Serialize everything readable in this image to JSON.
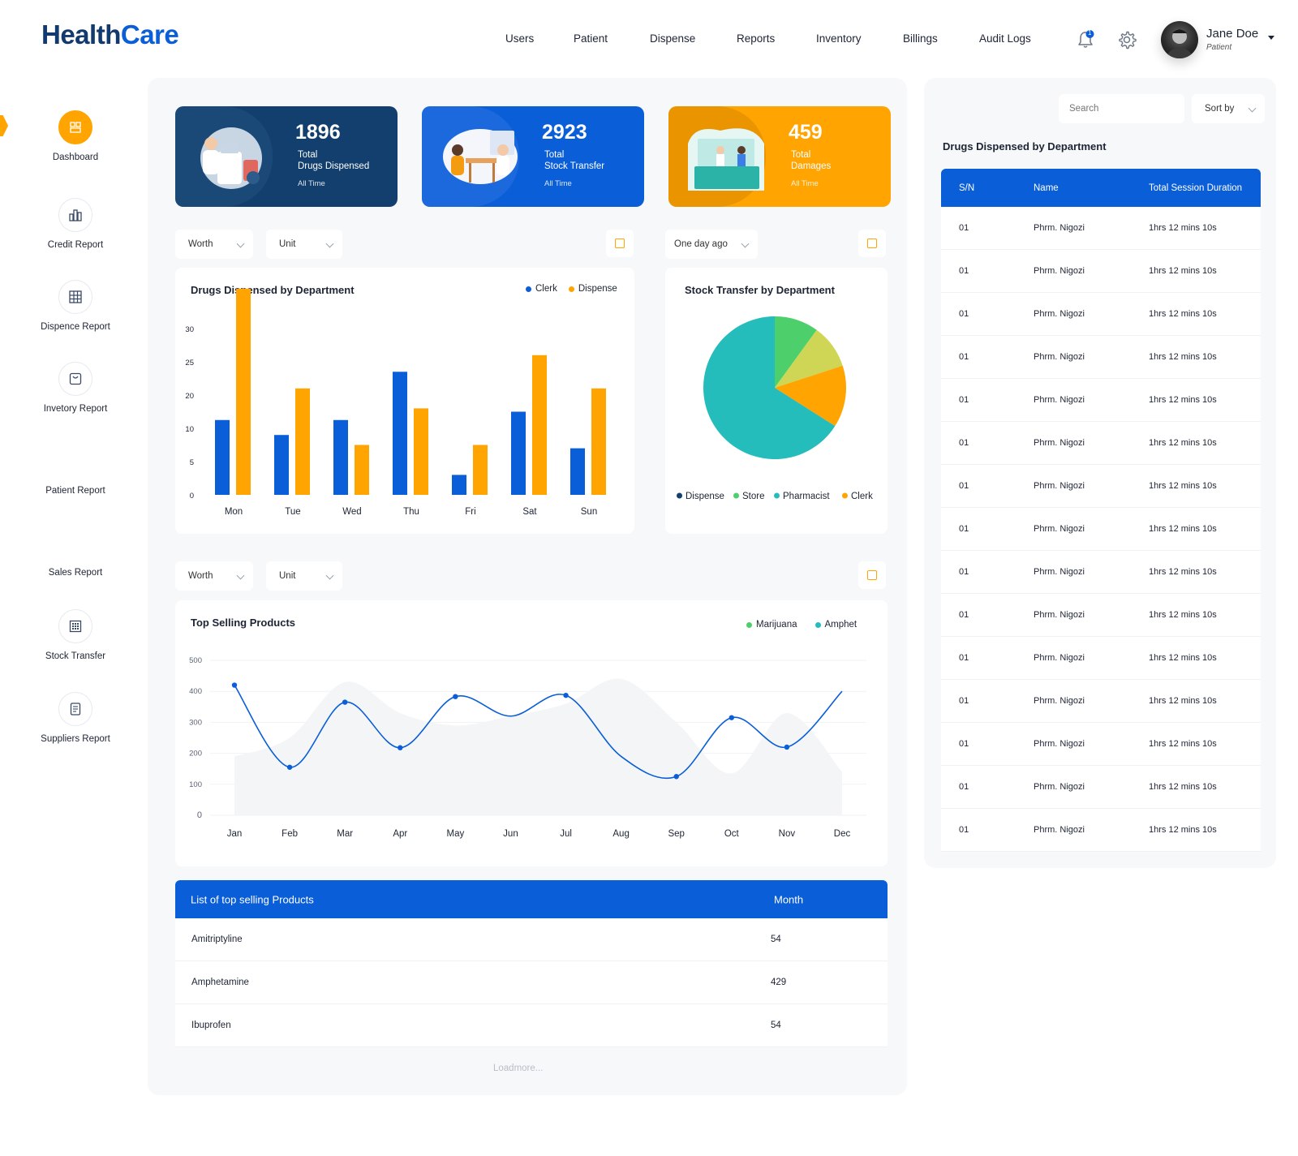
{
  "brand": {
    "part1": "Health",
    "part2": "Care"
  },
  "nav": [
    "Users",
    "Patient",
    "Dispense",
    "Reports",
    "Inventory",
    "Billings",
    "Audit Logs"
  ],
  "notifications": {
    "count": "1"
  },
  "user": {
    "name": "Jane Doe",
    "role": "Patient"
  },
  "sidebar": {
    "items": [
      {
        "label": "Dashboard",
        "icon": "dashboard-icon"
      },
      {
        "label": "Credit Report",
        "icon": "bar-chart-icon"
      },
      {
        "label": "Dispence Report",
        "icon": "grid-icon"
      },
      {
        "label": "Invetory Report",
        "icon": "bag-icon"
      },
      {
        "label": "Patient Report",
        "icon": ""
      },
      {
        "label": "Sales Report",
        "icon": ""
      },
      {
        "label": "Stock Transfer",
        "icon": "building-icon"
      },
      {
        "label": "Suppliers Report",
        "icon": "document-icon"
      }
    ]
  },
  "stats": [
    {
      "value": "1896",
      "line1": "Total",
      "line2": "Drugs Dispensed",
      "line3": "All Time",
      "color": "#123f6e"
    },
    {
      "value": "2923",
      "line1": "Total",
      "line2": "Stock Transfer",
      "line3": "All Time",
      "color": "#0a5ed7"
    },
    {
      "value": "459",
      "line1": "Total",
      "line2": "Damages",
      "line3": "All Time",
      "color": "#ffa400"
    }
  ],
  "filters": {
    "worth": "Worth",
    "unit": "Unit",
    "time": "One day ago",
    "worth2": "Worth",
    "unit2": "Unit"
  },
  "colors": {
    "blue": "#0a5ed7",
    "orange": "#ffa400",
    "teal": "#25bcbc",
    "green": "#4dd06b",
    "lime": "#cfd655",
    "navy": "#123f6e"
  },
  "chart_data": [
    {
      "type": "bar",
      "title": "Drugs Dispensed by Department",
      "categories": [
        "Mon",
        "Tue",
        "Wed",
        "Thu",
        "Fri",
        "Sat",
        "Sun"
      ],
      "yticks": [
        0,
        5,
        10,
        20,
        25,
        30
      ],
      "series": [
        {
          "name": "Clerk",
          "values": [
            12.5,
            9,
            12.5,
            23.5,
            3,
            15,
            7
          ]
        },
        {
          "name": "Dispense",
          "values": [
            36,
            21,
            7.5,
            16,
            7.5,
            26,
            21
          ]
        }
      ],
      "legend": "top-right"
    },
    {
      "type": "pie",
      "title": "Stock Transfer by Department",
      "slices": [
        {
          "name": "Store",
          "value": 10
        },
        {
          "name": "Pharmacist",
          "value": 10
        },
        {
          "name": "Clerk",
          "value": 14
        },
        {
          "name": "Dispense",
          "value": 66
        }
      ],
      "legend_order": [
        "Dispense",
        "Store",
        "Pharmacist",
        "Clerk"
      ],
      "legend": "bottom"
    },
    {
      "type": "line",
      "title": "Top Selling Products",
      "x": [
        "Jan",
        "Feb",
        "Mar",
        "Apr",
        "May",
        "Jun",
        "Jul",
        "Aug",
        "Sep",
        "Oct",
        "Nov",
        "Dec"
      ],
      "ylim": [
        0,
        500
      ],
      "yticks": [
        0,
        100,
        200,
        300,
        400,
        500
      ],
      "series": [
        {
          "name": "Amphet",
          "points": [
            [
              0,
              420
            ],
            [
              1,
              155
            ],
            [
              2,
              365
            ],
            [
              3,
              218
            ],
            [
              4,
              383
            ],
            [
              5,
              320
            ],
            [
              6,
              387
            ],
            [
              7,
              190
            ],
            [
              8,
              125
            ],
            [
              9,
              315
            ],
            [
              10,
              220
            ],
            [
              11,
              400
            ]
          ],
          "marker_idx": [
            0,
            1,
            2,
            3,
            4,
            6,
            8,
            9,
            10
          ]
        },
        {
          "name": "Marijuana",
          "points": [
            [
              0,
              190
            ],
            [
              1,
              250
            ],
            [
              2,
              430
            ],
            [
              3,
              330
            ],
            [
              4,
              290
            ],
            [
              5,
              320
            ],
            [
              6,
              360
            ],
            [
              7,
              440
            ],
            [
              8,
              300
            ],
            [
              9,
              135
            ],
            [
              10,
              330
            ],
            [
              11,
              140
            ]
          ]
        }
      ],
      "legend": "top-right"
    }
  ],
  "products": {
    "header_name": "List of top selling Products",
    "header_value": "Month",
    "rows": [
      {
        "name": "Amitriptyline",
        "value": "54"
      },
      {
        "name": "Amphetamine",
        "value": "429"
      },
      {
        "name": "Ibuprofen",
        "value": "54"
      }
    ],
    "loadmore": "Loadmore..."
  },
  "right": {
    "search_placeholder": "Search",
    "sort": "Sort by",
    "title": "Drugs Dispensed by Department",
    "headers": {
      "sn": "S/N",
      "name": "Name",
      "duration": "Total Session Duration"
    },
    "rows": [
      {
        "sn": "01",
        "name": "Phrm. Nigozi",
        "duration": "1hrs 12 mins 10s"
      },
      {
        "sn": "01",
        "name": "Phrm. Nigozi",
        "duration": "1hrs 12 mins 10s"
      },
      {
        "sn": "01",
        "name": "Phrm. Nigozi",
        "duration": "1hrs 12 mins 10s"
      },
      {
        "sn": "01",
        "name": "Phrm. Nigozi",
        "duration": "1hrs 12 mins 10s"
      },
      {
        "sn": "01",
        "name": "Phrm. Nigozi",
        "duration": "1hrs 12 mins 10s"
      },
      {
        "sn": "01",
        "name": "Phrm. Nigozi",
        "duration": "1hrs 12 mins 10s"
      },
      {
        "sn": "01",
        "name": "Phrm. Nigozi",
        "duration": "1hrs 12 mins 10s"
      },
      {
        "sn": "01",
        "name": "Phrm. Nigozi",
        "duration": "1hrs 12 mins 10s"
      },
      {
        "sn": "01",
        "name": "Phrm. Nigozi",
        "duration": "1hrs 12 mins 10s"
      },
      {
        "sn": "01",
        "name": "Phrm. Nigozi",
        "duration": "1hrs 12 mins 10s"
      },
      {
        "sn": "01",
        "name": "Phrm. Nigozi",
        "duration": "1hrs 12 mins 10s"
      },
      {
        "sn": "01",
        "name": "Phrm. Nigozi",
        "duration": "1hrs 12 mins 10s"
      },
      {
        "sn": "01",
        "name": "Phrm. Nigozi",
        "duration": "1hrs 12 mins 10s"
      },
      {
        "sn": "01",
        "name": "Phrm. Nigozi",
        "duration": "1hrs 12 mins 10s"
      },
      {
        "sn": "01",
        "name": "Phrm. Nigozi",
        "duration": "1hrs 12 mins 10s"
      }
    ]
  }
}
